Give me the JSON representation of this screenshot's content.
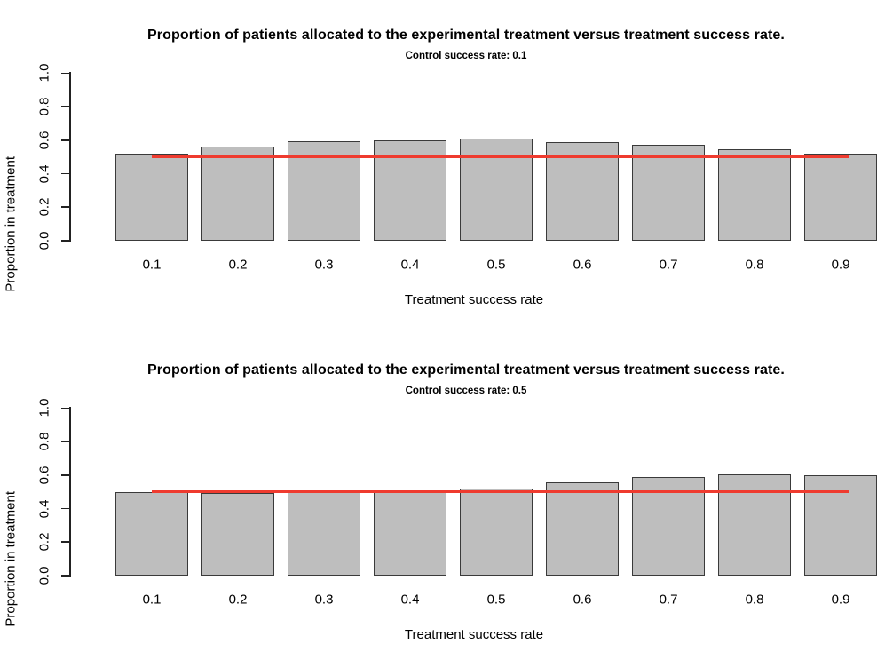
{
  "figure": {
    "background": "#ffffff",
    "bar_fill": "#bebebe",
    "bar_border": "#3a3a3a",
    "axis_color": "#222222",
    "reference_line_color": "#ef3b2f"
  },
  "chart_data": [
    {
      "type": "bar",
      "title": "Proportion of patients allocated to the experimental treatment versus treatment success rate.",
      "subtitle": "Control success rate: 0.1",
      "xlabel": "Treatment success rate",
      "ylabel": "Proportion in treatment",
      "categories": [
        "0.1",
        "0.2",
        "0.3",
        "0.4",
        "0.5",
        "0.6",
        "0.7",
        "0.8",
        "0.9"
      ],
      "values": [
        0.52,
        0.56,
        0.595,
        0.6,
        0.61,
        0.59,
        0.57,
        0.545,
        0.52
      ],
      "reference_line": {
        "y": 0.5,
        "color": "#ef3b2f"
      },
      "ylim": [
        0,
        1
      ],
      "yticks": [
        "0.0",
        "0.2",
        "0.4",
        "0.6",
        "0.8",
        "1.0"
      ],
      "grid": false,
      "legend": null
    },
    {
      "type": "bar",
      "title": "Proportion of patients allocated to the experimental treatment versus treatment success rate.",
      "subtitle": "Control success rate: 0.5",
      "xlabel": "Treatment success rate",
      "ylabel": "Proportion in treatment",
      "categories": [
        "0.1",
        "0.2",
        "0.3",
        "0.4",
        "0.5",
        "0.6",
        "0.7",
        "0.8",
        "0.9"
      ],
      "values": [
        0.5,
        0.495,
        0.5,
        0.51,
        0.52,
        0.555,
        0.59,
        0.605,
        0.6
      ],
      "reference_line": {
        "y": 0.5,
        "color": "#ef3b2f"
      },
      "ylim": [
        0,
        1
      ],
      "yticks": [
        "0.0",
        "0.2",
        "0.4",
        "0.6",
        "0.8",
        "1.0"
      ],
      "grid": false,
      "legend": null
    }
  ]
}
